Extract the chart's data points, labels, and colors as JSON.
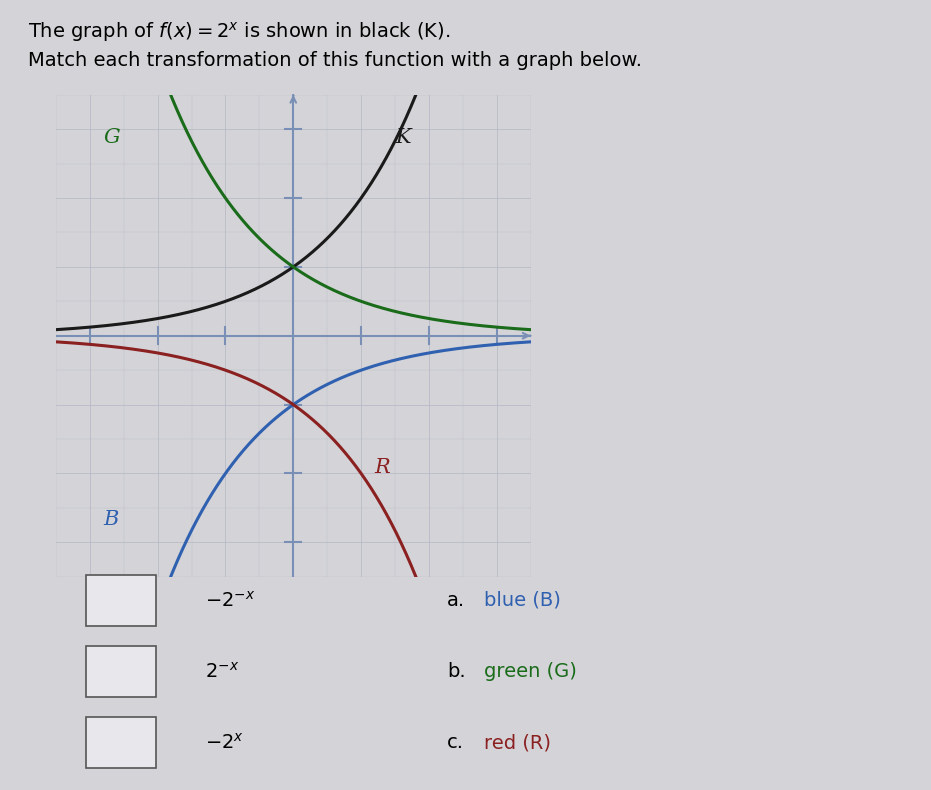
{
  "background_color": "#d4d4d8",
  "graph_bg_color": "#d4d4d8",
  "xlim": [
    -3.5,
    3.5
  ],
  "ylim": [
    -3.5,
    3.5
  ],
  "colors": {
    "K": "#1a1a1a",
    "G": "#1a6b1a",
    "B": "#3060b0",
    "R": "#8b2020"
  },
  "axis_color": "#7a8fb5",
  "grid_color": "#b8bcc8",
  "title_line1": "The graph of f(x) = 2^x is shown in black (K).",
  "title_line2": "Match each transformation of this function with a graph below.",
  "labels": {
    "G": "G",
    "K": "K",
    "B": "B",
    "R": "R"
  },
  "legend_items": [
    {
      "expr": "-2^{-x}",
      "letter": "a.",
      "color_name": "blue (B)",
      "color": "#3060b0"
    },
    {
      "expr": "2^{-x}",
      "letter": "b.",
      "color_name": "green (G)",
      "color": "#1a6b1a"
    },
    {
      "expr": "-2^{x}",
      "letter": "c.",
      "color_name": "red (R)",
      "color": "#8b2020"
    }
  ],
  "title_fontsize": 14,
  "label_fontsize": 15,
  "legend_fontsize": 14
}
